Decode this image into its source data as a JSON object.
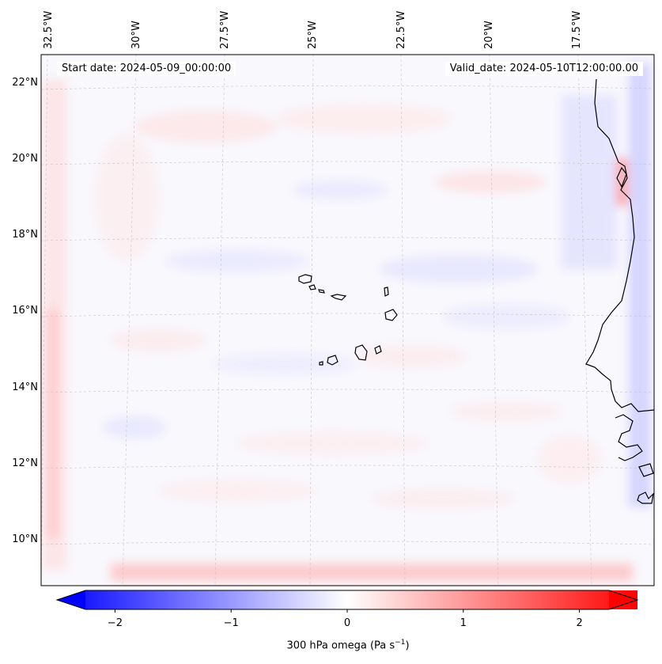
{
  "map": {
    "start_date_label": "Start date: 2024-05-09_00:00:00",
    "valid_date_label": "Valid_date: 2024-05-10T12:00:00.00",
    "longitude_labels": [
      "32.5°W",
      "30°W",
      "27.5°W",
      "25°W",
      "22.5°W",
      "20°W",
      "17.5°W"
    ],
    "latitude_labels": [
      "22°N",
      "20°N",
      "18°N",
      "16°N",
      "14°N",
      "12°N",
      "10°N"
    ],
    "colors": {
      "negative": "#0000ff",
      "neutral": "#ffffff",
      "positive": "#ff0000",
      "coast": "#000000"
    }
  },
  "colorbar": {
    "ticks": [
      "−2",
      "−1",
      "0",
      "1",
      "2"
    ],
    "tick_values": [
      -2,
      -1,
      0,
      1,
      2
    ],
    "range": [
      -2.5,
      2.5
    ],
    "label_main": "300 hPa omega (Pa s",
    "label_exp": "−1",
    "label_close": ")"
  }
}
